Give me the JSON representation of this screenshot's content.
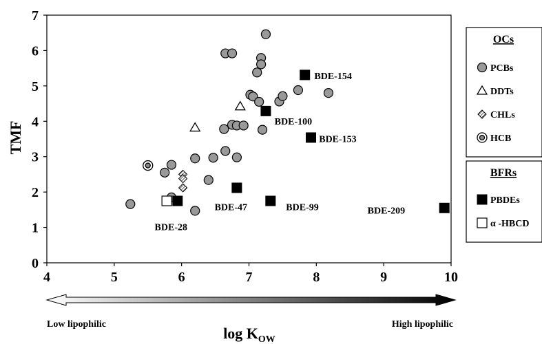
{
  "chart_data": {
    "type": "scatter",
    "xlabel": "log K",
    "xlabel_sub": "OW",
    "ylabel": "TMF",
    "xlim": [
      4,
      10
    ],
    "ylim": [
      0,
      7
    ],
    "x_ticks": [
      "4",
      "5",
      "6",
      "7",
      "8",
      "9",
      "10"
    ],
    "y_ticks": [
      "0",
      "1",
      "2",
      "3",
      "4",
      "5",
      "6",
      "7"
    ],
    "grid": false,
    "legend_position": "right",
    "legend_groups": [
      {
        "title": "OCs",
        "items": [
          {
            "label": "PCBs",
            "marker": "circle"
          },
          {
            "label": "DDTs",
            "marker": "triangle"
          },
          {
            "label": "CHLs",
            "marker": "diamond-hatched"
          },
          {
            "label": "HCB",
            "marker": "double-circle"
          }
        ]
      },
      {
        "title": "BFRs",
        "items": [
          {
            "label": "PBDEs",
            "marker": "filled-square"
          },
          {
            "label": "α -HBCD",
            "marker": "open-square"
          }
        ]
      }
    ],
    "series": [
      {
        "name": "PCBs",
        "marker": "circle",
        "points": [
          [
            5.24,
            1.66
          ],
          [
            5.75,
            2.55
          ],
          [
            5.85,
            2.77
          ],
          [
            5.85,
            1.85
          ],
          [
            6.2,
            2.95
          ],
          [
            6.2,
            1.47
          ],
          [
            6.4,
            2.34
          ],
          [
            6.47,
            2.97
          ],
          [
            6.63,
            3.78
          ],
          [
            6.65,
            3.16
          ],
          [
            6.75,
            3.9
          ],
          [
            6.82,
            3.88
          ],
          [
            6.82,
            2.98
          ],
          [
            6.92,
            3.88
          ],
          [
            6.65,
            5.92
          ],
          [
            6.75,
            5.92
          ],
          [
            7.02,
            4.75
          ],
          [
            7.06,
            4.7
          ],
          [
            7.12,
            5.38
          ],
          [
            7.15,
            4.55
          ],
          [
            7.18,
            5.79
          ],
          [
            7.18,
            5.61
          ],
          [
            7.2,
            3.76
          ],
          [
            7.25,
            6.46
          ],
          [
            7.45,
            4.56
          ],
          [
            7.5,
            4.71
          ],
          [
            7.73,
            4.88
          ],
          [
            8.18,
            4.8
          ]
        ]
      },
      {
        "name": "DDTs",
        "marker": "triangle",
        "points": [
          [
            6.2,
            3.82
          ],
          [
            6.87,
            4.42
          ]
        ]
      },
      {
        "name": "CHLs",
        "marker": "diamond-hatched",
        "points": [
          [
            6.02,
            2.5
          ],
          [
            6.02,
            2.38
          ],
          [
            6.02,
            2.12
          ]
        ]
      },
      {
        "name": "HCB",
        "marker": "double-circle",
        "points": [
          [
            5.5,
            2.75
          ]
        ]
      },
      {
        "name": "PBDEs",
        "marker": "filled-square",
        "points": [
          [
            5.94,
            1.75
          ],
          [
            6.82,
            2.12
          ],
          [
            7.32,
            1.75
          ],
          [
            7.25,
            4.29
          ],
          [
            7.83,
            5.31
          ],
          [
            7.92,
            3.54
          ],
          [
            9.9,
            1.55
          ]
        ]
      },
      {
        "name": "α -HBCD",
        "marker": "open-square",
        "points": [
          [
            5.78,
            1.75
          ]
        ]
      }
    ],
    "annotations": [
      {
        "text": "BDE-154",
        "x": 7.97,
        "y": 5.29
      },
      {
        "text": "BDE-100",
        "x": 7.38,
        "y": 4.01
      },
      {
        "text": "BDE-153",
        "x": 8.04,
        "y": 3.51
      },
      {
        "text": "BDE-47",
        "x": 6.49,
        "y": 1.58
      },
      {
        "text": "BDE-99",
        "x": 7.55,
        "y": 1.58
      },
      {
        "text": "BDE-209",
        "x": 8.76,
        "y": 1.49
      },
      {
        "text": "BDE-28",
        "x": 5.6,
        "y": 1.02
      }
    ],
    "arrow_labels": {
      "left": "Low lipophilic",
      "right": "High lipophilic"
    }
  }
}
